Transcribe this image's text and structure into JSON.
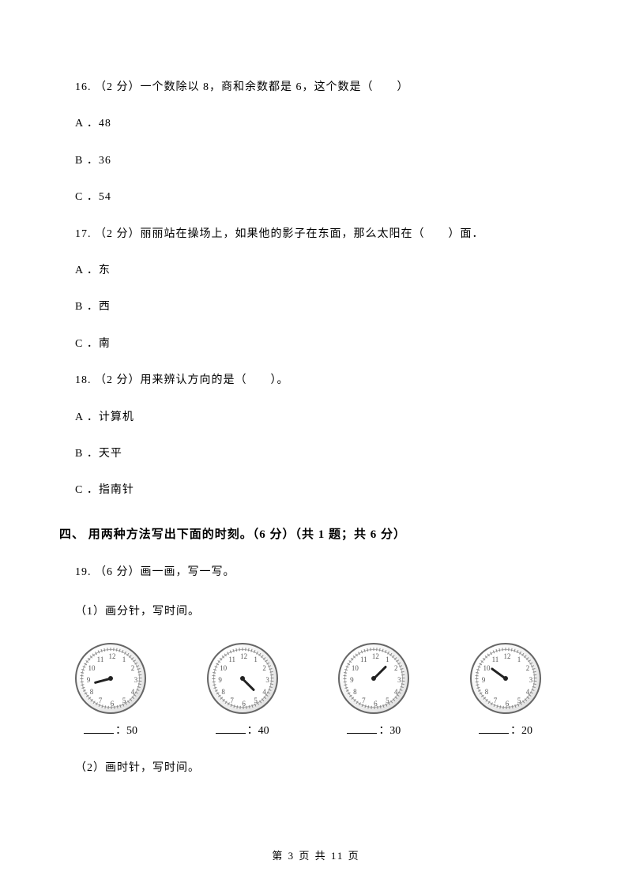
{
  "q16": {
    "text": "16.  （2 分）一个数除以 8，商和余数都是 6，这个数是（　　）",
    "a": "A ．48",
    "b": "B ．36",
    "c": "C ．54"
  },
  "q17": {
    "text": "17.  （2 分）丽丽站在操场上，如果他的影子在东面，那么太阳在（　　）面．",
    "a": "A ．东",
    "b": "B ．西",
    "c": "C ．南"
  },
  "q18": {
    "text": "18.  （2 分）用来辨认方向的是（　　）。",
    "a": "A ．计算机",
    "b": "B ．天平",
    "c": "C ．指南针"
  },
  "section4": "四、 用两种方法写出下面的时刻。（6 分）（共 1 题；共 6 分）",
  "q19": {
    "text": "19.  （6 分）画一画，写一写。",
    "sub1": "（1）画分针，写时间。",
    "sub2": "（2）画时针，写时间。"
  },
  "clocks": [
    {
      "hour_angle": 255,
      "label_minute": "：50"
    },
    {
      "hour_angle": 135,
      "label_minute": "：40"
    },
    {
      "hour_angle": 45,
      "label_minute": "：30"
    },
    {
      "hour_angle": 306,
      "label_minute": "：20"
    }
  ],
  "clock_numbers": [
    "12",
    "1",
    "2",
    "3",
    "4",
    "5",
    "6",
    "7",
    "8",
    "9",
    "10",
    "11"
  ],
  "footer": "第 3 页 共 11 页"
}
